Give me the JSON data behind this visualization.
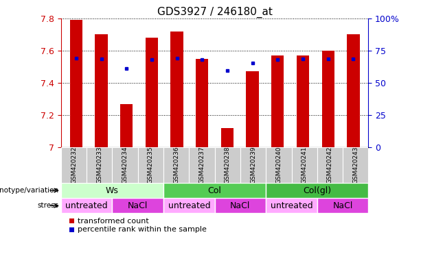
{
  "title": "GDS3927 / 246180_at",
  "samples": [
    "GSM420232",
    "GSM420233",
    "GSM420234",
    "GSM420235",
    "GSM420236",
    "GSM420237",
    "GSM420238",
    "GSM420239",
    "GSM420240",
    "GSM420241",
    "GSM420242",
    "GSM420243"
  ],
  "bar_values": [
    7.79,
    7.7,
    7.27,
    7.68,
    7.72,
    7.55,
    7.12,
    7.47,
    7.57,
    7.57,
    7.6,
    7.7
  ],
  "percentile_values": [
    7.555,
    7.548,
    7.487,
    7.543,
    7.553,
    7.543,
    7.476,
    7.525,
    7.545,
    7.548,
    7.548,
    7.548
  ],
  "ylim": [
    7.0,
    7.8
  ],
  "yticks": [
    7.0,
    7.2,
    7.4,
    7.6,
    7.8
  ],
  "right_yticks": [
    0,
    25,
    50,
    75,
    100
  ],
  "right_ytick_labels": [
    "0",
    "25",
    "50",
    "75",
    "100%"
  ],
  "bar_color": "#cc0000",
  "percentile_color": "#0000cc",
  "bar_width": 0.5,
  "genotype_groups": [
    {
      "label": "Ws",
      "start": 0,
      "end": 3,
      "color": "#ccffcc"
    },
    {
      "label": "Col",
      "start": 4,
      "end": 7,
      "color": "#55cc55"
    },
    {
      "label": "Col(gl)",
      "start": 8,
      "end": 11,
      "color": "#44bb44"
    }
  ],
  "stress_groups": [
    {
      "label": "untreated",
      "start": 0,
      "end": 1,
      "color": "#ffaaff"
    },
    {
      "label": "NaCl",
      "start": 2,
      "end": 3,
      "color": "#dd44dd"
    },
    {
      "label": "untreated",
      "start": 4,
      "end": 5,
      "color": "#ffaaff"
    },
    {
      "label": "NaCl",
      "start": 6,
      "end": 7,
      "color": "#dd44dd"
    },
    {
      "label": "untreated",
      "start": 8,
      "end": 9,
      "color": "#ffaaff"
    },
    {
      "label": "NaCl",
      "start": 10,
      "end": 11,
      "color": "#dd44dd"
    }
  ],
  "legend_items": [
    {
      "label": "transformed count",
      "color": "#cc0000"
    },
    {
      "label": "percentile rank within the sample",
      "color": "#0000cc"
    }
  ],
  "tick_label_color": "#cc0000",
  "right_tick_color": "#0000cc",
  "grid_color": "black",
  "sample_bg_color": "#cccccc",
  "left_label_color": "#555555"
}
